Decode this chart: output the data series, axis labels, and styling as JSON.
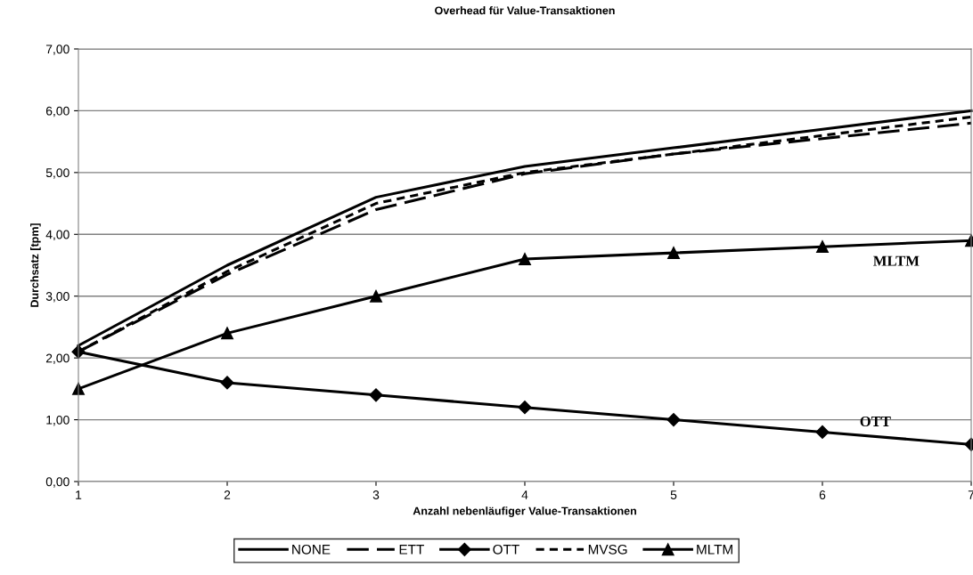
{
  "chart_data": {
    "type": "line",
    "title": "Overhead für Value-Transaktionen",
    "xlabel": "Anzahl nebenläufiger Value-Transaktionen",
    "ylabel": "Durchsatz [tpm]",
    "x": [
      1,
      2,
      3,
      4,
      5,
      6,
      7
    ],
    "series": [
      {
        "name": "NONE",
        "color": "#000000",
        "line_style": "solid",
        "marker": "none",
        "values": [
          2.2,
          3.5,
          4.6,
          5.1,
          5.4,
          5.7,
          6.0
        ]
      },
      {
        "name": "ETT",
        "color": "#000000",
        "line_style": "dashed",
        "marker": "none",
        "values": [
          2.1,
          3.35,
          4.4,
          4.98,
          5.3,
          5.55,
          5.8
        ]
      },
      {
        "name": "OTT",
        "color": "#000000",
        "line_style": "solid",
        "marker": "diamond",
        "values": [
          2.1,
          1.6,
          1.4,
          1.2,
          1.0,
          0.8,
          0.6
        ]
      },
      {
        "name": "MVSG",
        "color": "#000000",
        "line_style": "dotted",
        "marker": "none",
        "values": [
          2.1,
          3.4,
          4.5,
          5.0,
          5.3,
          5.6,
          5.9
        ]
      },
      {
        "name": "MLTM",
        "color": "#000000",
        "line_style": "solid",
        "marker": "triangle",
        "values": [
          1.5,
          2.4,
          3.0,
          3.6,
          3.7,
          3.8,
          3.9
        ]
      }
    ],
    "annotations": [
      "MLTM",
      "OTT"
    ],
    "xlim": [
      1,
      7
    ],
    "xticks": [
      1,
      2,
      3,
      4,
      5,
      6,
      7
    ],
    "ylim": [
      0,
      7
    ],
    "yticks": [
      {
        "value": 0,
        "label": "0,00"
      },
      {
        "value": 1,
        "label": "1,00"
      },
      {
        "value": 2,
        "label": "2,00"
      },
      {
        "value": 3,
        "label": "3,00"
      },
      {
        "value": 4,
        "label": "4,00"
      },
      {
        "value": 5,
        "label": "5,00"
      },
      {
        "value": 6,
        "label": "6,00"
      },
      {
        "value": 7,
        "label": "7,00"
      }
    ],
    "grid": "y",
    "legend": "bottom"
  }
}
